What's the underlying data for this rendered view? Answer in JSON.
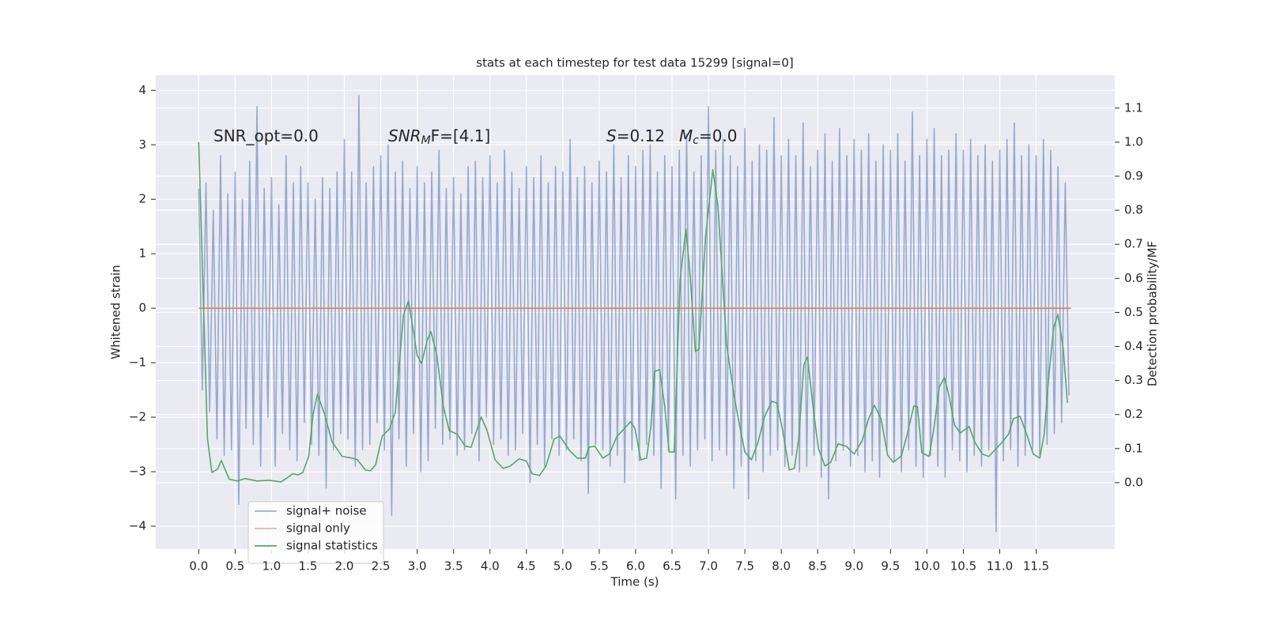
{
  "chart_data": {
    "type": "line",
    "title": "stats at each timestep for test data 15299 [signal=0]",
    "xlabel": "Time (s)",
    "ylabel": "Whitened strain",
    "y2label": "Detection probability/MF",
    "annotations": [
      [
        "SNR_opt=0.0"
      ],
      [
        "SNR",
        "M",
        "F=[4.1]"
      ],
      [
        "S",
        "=0.12"
      ],
      [
        "M",
        "c",
        "=0.0"
      ]
    ],
    "xlim": [
      -0.59,
      12.58
    ],
    "xticks": [
      {
        "value": 0,
        "label": "0.0"
      },
      0.5,
      {
        "value": 1,
        "label": "1.0"
      },
      1.5,
      {
        "value": 2,
        "label": "2.0"
      },
      2.5,
      {
        "value": 3,
        "label": "3.0"
      },
      3.5,
      {
        "value": 4,
        "label": "4.0"
      },
      4.5,
      {
        "value": 5,
        "label": "5.0"
      },
      5.5,
      {
        "value": 6,
        "label": "6.0"
      },
      6.5,
      {
        "value": 7,
        "label": "7.0"
      },
      7.5,
      {
        "value": 8,
        "label": "8.0"
      },
      8.5,
      {
        "value": 9,
        "label": "9.0"
      },
      9.5,
      {
        "value": 10,
        "label": "10.0"
      },
      10.5,
      {
        "value": 11,
        "label": "11.0"
      },
      11.5
    ],
    "ylim": [
      -4.42,
      4.28
    ],
    "yticks": [
      {
        "value": -4,
        "label": "−4"
      },
      {
        "value": -3,
        "label": "−3"
      },
      {
        "value": -2,
        "label": "−2"
      },
      {
        "value": -1,
        "label": "−1"
      },
      0,
      1,
      2,
      3,
      4
    ],
    "y2lim": [
      -0.195,
      1.197
    ],
    "y2ticks": [
      {
        "value": 0,
        "label": "0.0"
      },
      0.1,
      0.2,
      0.3,
      0.4,
      0.5,
      0.6,
      0.7,
      0.8,
      0.9,
      {
        "value": 1,
        "label": "1.0"
      },
      1.1
    ],
    "grid": true,
    "legend": "lower left",
    "series": [
      {
        "name": "signal+ noise",
        "color": "#4c72b0",
        "x": [
          0,
          0.05,
          0.1,
          0.15,
          0.2,
          0.25,
          0.3,
          0.35,
          0.4,
          0.45,
          0.5,
          0.55,
          0.6,
          0.65,
          0.7,
          0.75,
          0.8,
          0.85,
          0.9,
          0.95,
          1,
          1.05,
          1.1,
          1.15,
          1.2,
          1.25,
          1.3,
          1.35,
          1.4,
          1.45,
          1.5,
          1.55,
          1.6,
          1.65,
          1.7,
          1.75,
          1.8,
          1.85,
          1.9,
          1.95,
          2,
          2.05,
          2.1,
          2.15,
          2.2,
          2.25,
          2.3,
          2.35,
          2.4,
          2.45,
          2.5,
          2.55,
          2.6,
          2.65,
          2.7,
          2.75,
          2.8,
          2.85,
          2.9,
          2.95,
          3,
          3.05,
          3.1,
          3.15,
          3.2,
          3.25,
          3.3,
          3.35,
          3.4,
          3.45,
          3.5,
          3.55,
          3.6,
          3.65,
          3.7,
          3.75,
          3.8,
          3.85,
          3.9,
          3.95,
          4,
          4.05,
          4.1,
          4.15,
          4.2,
          4.25,
          4.3,
          4.35,
          4.4,
          4.45,
          4.5,
          4.55,
          4.6,
          4.65,
          4.7,
          4.75,
          4.8,
          4.85,
          4.9,
          4.95,
          5,
          5.05,
          5.1,
          5.15,
          5.2,
          5.25,
          5.3,
          5.35,
          5.4,
          5.45,
          5.5,
          5.55,
          5.6,
          5.65,
          5.7,
          5.75,
          5.8,
          5.85,
          5.9,
          5.95,
          6,
          6.05,
          6.1,
          6.15,
          6.2,
          6.25,
          6.3,
          6.35,
          6.4,
          6.45,
          6.5,
          6.55,
          6.6,
          6.65,
          6.7,
          6.75,
          6.8,
          6.85,
          6.9,
          6.95,
          7,
          7.05,
          7.1,
          7.15,
          7.2,
          7.25,
          7.3,
          7.35,
          7.4,
          7.45,
          7.5,
          7.55,
          7.6,
          7.65,
          7.7,
          7.75,
          7.8,
          7.85,
          7.9,
          7.95,
          8,
          8.05,
          8.1,
          8.15,
          8.2,
          8.25,
          8.3,
          8.35,
          8.4,
          8.45,
          8.5,
          8.55,
          8.6,
          8.65,
          8.7,
          8.75,
          8.8,
          8.85,
          8.9,
          8.95,
          9,
          9.05,
          9.1,
          9.15,
          9.2,
          9.25,
          9.3,
          9.35,
          9.4,
          9.45,
          9.5,
          9.55,
          9.6,
          9.65,
          9.7,
          9.75,
          9.8,
          9.85,
          9.9,
          9.95,
          10,
          10.05,
          10.1,
          10.15,
          10.2,
          10.25,
          10.3,
          10.35,
          10.4,
          10.45,
          10.5,
          10.55,
          10.6,
          10.65,
          10.7,
          10.75,
          10.8,
          10.85,
          10.9,
          10.95,
          11,
          11.05,
          11.1,
          11.15,
          11.2,
          11.25,
          11.3,
          11.35,
          11.4,
          11.45,
          11.5,
          11.55,
          11.6,
          11.65,
          11.7,
          11.75,
          11.8,
          11.85,
          11.9,
          11.95
        ],
        "values": [
          2.2,
          -1.5,
          2.3,
          -1.9,
          1.8,
          -2.4,
          2.8,
          -2.7,
          2.1,
          -2.6,
          2.5,
          -3.6,
          2.0,
          -2.2,
          2.7,
          -2.5,
          3.7,
          -2.9,
          2.2,
          -2.0,
          2.4,
          -2.9,
          1.9,
          -2.3,
          2.8,
          -2.6,
          2.3,
          -2.8,
          2.6,
          -2.1,
          2.3,
          -2.5,
          2.0,
          -2.7,
          2.4,
          -3.3,
          2.2,
          -2.6,
          2.5,
          -2.3,
          3.1,
          -2.4,
          2.5,
          -2.9,
          3.9,
          -2.6,
          2.3,
          -2.5,
          2.6,
          -2.1,
          2.8,
          -2.6,
          3.0,
          -3.8,
          2.5,
          -2.4,
          2.7,
          -2.9,
          2.2,
          -2.3,
          2.6,
          -3.0,
          2.3,
          -2.8,
          2.5,
          -2.2,
          2.9,
          -2.5,
          2.2,
          -2.4,
          2.4,
          -2.7,
          2.1,
          -2.6,
          2.6,
          -2.3,
          2.7,
          -2.8,
          2.4,
          -2.0,
          2.8,
          -2.5,
          2.3,
          -2.4,
          2.9,
          -2.7,
          2.5,
          -2.6,
          2.2,
          -2.3,
          2.6,
          -3.2,
          2.4,
          -2.5,
          2.8,
          -2.9,
          2.3,
          -2.4,
          2.6,
          -2.7,
          2.5,
          -2.6,
          3.1,
          -2.4,
          2.4,
          -2.8,
          2.6,
          -3.4,
          2.3,
          -2.5,
          2.7,
          -2.6,
          2.5,
          -2.9,
          3.0,
          -2.7,
          2.4,
          -3.2,
          2.8,
          -2.6,
          2.6,
          -2.8,
          2.9,
          -2.5,
          3.0,
          -2.7,
          2.5,
          -3.3,
          2.8,
          -2.6,
          2.6,
          -3.5,
          2.9,
          -2.7,
          3.2,
          -2.9,
          2.5,
          -2.6,
          2.8,
          -2.4,
          3.7,
          -2.8,
          2.9,
          -2.6,
          3.1,
          -2.7,
          2.8,
          -3.3,
          2.6,
          -2.9,
          3.3,
          -3.5,
          2.7,
          -2.8,
          3.0,
          -3.0,
          2.9,
          -2.7,
          3.5,
          -2.6,
          2.8,
          -2.9,
          3.1,
          -2.7,
          2.8,
          -3.0,
          3.4,
          -2.9,
          2.6,
          -2.7,
          2.9,
          -3.1,
          3.2,
          -3.5,
          2.7,
          -2.8,
          3.3,
          -2.6,
          2.8,
          -2.9,
          3.1,
          -2.7,
          2.9,
          -3.0,
          3.2,
          -2.8,
          2.7,
          -3.1,
          3.0,
          -2.6,
          2.9,
          -2.8,
          3.2,
          -3.0,
          2.7,
          -2.6,
          3.6,
          -2.9,
          2.8,
          -3.1,
          3.1,
          -2.7,
          3.3,
          -2.9,
          2.8,
          -3.1,
          2.9,
          -2.6,
          3.2,
          -2.8,
          2.9,
          -3.0,
          3.1,
          -2.7,
          2.8,
          -2.9,
          3.0,
          -2.6,
          2.7,
          -4.1,
          2.9,
          -2.8,
          3.1,
          -2.6,
          3.4,
          -2.9,
          2.8,
          -2.7,
          3.0,
          -2.6,
          2.8,
          -2.7,
          3.1,
          -2.5,
          2.9,
          -2.3,
          2.6,
          -2.1,
          2.3,
          -1.6
        ]
      },
      {
        "name": "signal only",
        "color": "#dd8452",
        "x": [
          0,
          11.98
        ],
        "values": [
          0,
          0
        ]
      },
      {
        "name": "signal statistics",
        "color": "#55a868",
        "axis": "y2",
        "x": [
          0,
          0.12,
          0.18,
          0.26,
          0.31,
          0.42,
          0.53,
          0.64,
          0.8,
          0.97,
          1.13,
          1.2,
          1.29,
          1.37,
          1.43,
          1.51,
          1.57,
          1.63,
          1.73,
          1.83,
          1.97,
          2.11,
          2.18,
          2.29,
          2.36,
          2.43,
          2.52,
          2.62,
          2.7,
          2.81,
          2.88,
          2.95,
          3.0,
          3.06,
          3.14,
          3.19,
          3.27,
          3.36,
          3.44,
          3.55,
          3.66,
          3.74,
          3.88,
          3.96,
          4.07,
          4.18,
          4.28,
          4.4,
          4.5,
          4.58,
          4.68,
          4.77,
          4.88,
          4.96,
          5.09,
          5.2,
          5.31,
          5.36,
          5.44,
          5.55,
          5.64,
          5.74,
          5.85,
          5.93,
          5.99,
          6.07,
          6.15,
          6.21,
          6.26,
          6.33,
          6.4,
          6.46,
          6.53,
          6.61,
          6.69,
          6.75,
          6.82,
          6.87,
          6.96,
          7.06,
          7.13,
          7.25,
          7.35,
          7.43,
          7.5,
          7.59,
          7.68,
          7.77,
          7.87,
          7.94,
          8.02,
          8.11,
          8.18,
          8.24,
          8.31,
          8.36,
          8.44,
          8.51,
          8.6,
          8.68,
          8.78,
          8.89,
          9.0,
          9.11,
          9.2,
          9.28,
          9.37,
          9.46,
          9.54,
          9.65,
          9.73,
          9.82,
          9.87,
          9.93,
          10.03,
          10.1,
          10.17,
          10.24,
          10.3,
          10.38,
          10.46,
          10.58,
          10.66,
          10.76,
          10.85,
          10.93,
          11.03,
          11.12,
          11.19,
          11.28,
          11.37,
          11.46,
          11.55,
          11.61,
          11.67,
          11.74,
          11.8,
          11.87,
          11.93
        ],
        "values": [
          1.0,
          0.13,
          0.03,
          0.04,
          0.065,
          0.01,
          0.005,
          0.012,
          0.005,
          0.007,
          0.002,
          0.012,
          0.026,
          0.023,
          0.03,
          0.077,
          0.2,
          0.26,
          0.2,
          0.12,
          0.077,
          0.072,
          0.067,
          0.037,
          0.035,
          0.053,
          0.137,
          0.158,
          0.207,
          0.49,
          0.534,
          0.443,
          0.374,
          0.35,
          0.42,
          0.443,
          0.374,
          0.223,
          0.153,
          0.142,
          0.107,
          0.104,
          0.193,
          0.153,
          0.067,
          0.042,
          0.049,
          0.07,
          0.063,
          0.026,
          0.021,
          0.049,
          0.128,
          0.137,
          0.095,
          0.072,
          0.072,
          0.104,
          0.107,
          0.072,
          0.084,
          0.135,
          0.16,
          0.179,
          0.16,
          0.067,
          0.072,
          0.165,
          0.327,
          0.332,
          0.223,
          0.09,
          0.09,
          0.594,
          0.745,
          0.606,
          0.385,
          0.392,
          0.722,
          0.919,
          0.814,
          0.404,
          0.258,
          0.165,
          0.09,
          0.067,
          0.118,
          0.193,
          0.239,
          0.234,
          0.153,
          0.037,
          0.042,
          0.13,
          0.346,
          0.369,
          0.216,
          0.1,
          0.049,
          0.06,
          0.114,
          0.107,
          0.084,
          0.123,
          0.188,
          0.227,
          0.188,
          0.081,
          0.06,
          0.079,
          0.142,
          0.225,
          0.223,
          0.088,
          0.077,
          0.165,
          0.281,
          0.309,
          0.258,
          0.169,
          0.146,
          0.165,
          0.118,
          0.084,
          0.077,
          0.095,
          0.118,
          0.142,
          0.188,
          0.195,
          0.142,
          0.084,
          0.072,
          0.142,
          0.304,
          0.455,
          0.494,
          0.397,
          0.234
        ]
      }
    ]
  }
}
